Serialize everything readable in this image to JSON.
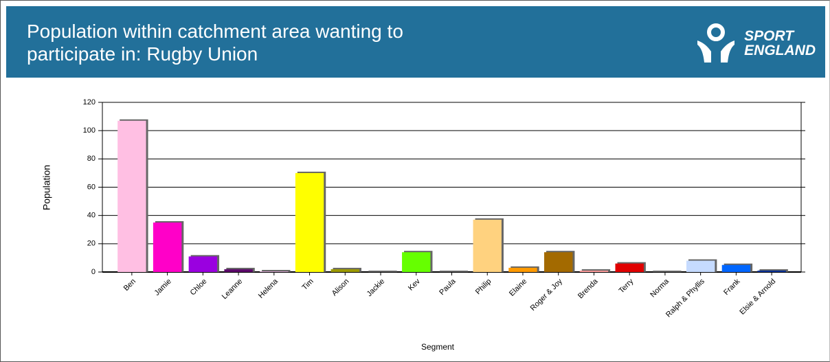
{
  "header": {
    "logo": [
      "SPORT",
      "ENGLAND"
    ]
  },
  "chart_data": {
    "type": "bar",
    "title": "Population within catchment area wanting to participate in: Rugby Union",
    "x_label": "Segment",
    "y_label": "Population",
    "categories": [
      "Ben",
      "Jamie",
      "Chloe",
      "Leanne",
      "Helena",
      "Tim",
      "Alison",
      "Jackie",
      "Kev",
      "Paula",
      "Philip",
      "Elaine",
      "Roger & Joy",
      "Brenda",
      "Terry",
      "Norma",
      "Ralph & Phyllis",
      "Frank",
      "Elsie & Arnold"
    ],
    "values": [
      107,
      35,
      11,
      2,
      0.5,
      70,
      2,
      0,
      14,
      0,
      37,
      3,
      14,
      1,
      6,
      0,
      8,
      5,
      1
    ],
    "colors": [
      "#ffbfe3",
      "#ff00c8",
      "#9a00e0",
      "#5c0a6a",
      "#d8a8d0",
      "#ffff00",
      "#9c9a00",
      "#cccccc",
      "#66ff00",
      "#999999",
      "#ffd27f",
      "#ff9a00",
      "#a36a00",
      "#ff9f9f",
      "#e00000",
      "#aaaaaa",
      "#c6dbff",
      "#0066ff",
      "#003399"
    ],
    "ylim": [
      0,
      120
    ],
    "yticks": [
      0,
      20,
      40,
      60,
      80,
      100,
      120
    ],
    "grid": true
  }
}
